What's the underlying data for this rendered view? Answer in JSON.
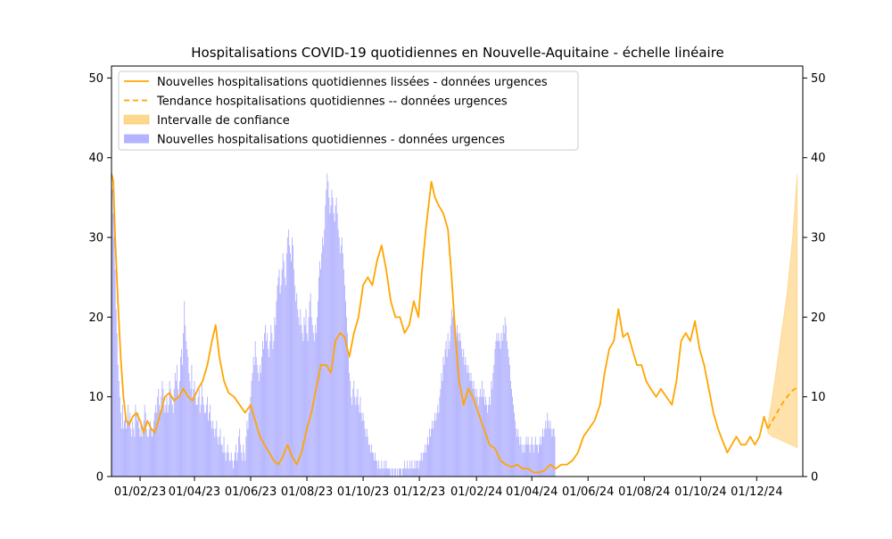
{
  "chart_data": {
    "type": "bar",
    "title": "Hospitalisations COVID-19 quotidiennes en Nouvelle-Aquitaine - échelle linéaire",
    "xlabel": "",
    "ylabel": "",
    "ylim": [
      0,
      51.5
    ],
    "yticks": [
      0,
      10,
      20,
      30,
      40,
      50
    ],
    "ytick_labels": [
      "0",
      "10",
      "20",
      "30",
      "40",
      "50"
    ],
    "xticks": [
      {
        "label": "01/02/23",
        "date": "2023-02-01"
      },
      {
        "label": "01/04/23",
        "date": "2023-04-01"
      },
      {
        "label": "01/06/23",
        "date": "2023-06-01"
      },
      {
        "label": "01/08/23",
        "date": "2023-08-01"
      },
      {
        "label": "01/10/23",
        "date": "2023-10-01"
      },
      {
        "label": "01/12/23",
        "date": "2023-12-01"
      },
      {
        "label": "01/02/24",
        "date": "2024-02-01"
      },
      {
        "label": "01/04/24",
        "date": "2024-04-01"
      },
      {
        "label": "01/06/24",
        "date": "2024-06-01"
      },
      {
        "label": "01/08/24",
        "date": "2024-08-01"
      },
      {
        "label": "01/10/24",
        "date": "2024-10-01"
      },
      {
        "label": "01/12/24",
        "date": "2024-12-01"
      }
    ],
    "xlim": [
      "2023-01-01",
      "2025-01-20"
    ],
    "grid": false,
    "right_axis": true,
    "legend_position": "upper-left",
    "colors": {
      "bars": "#b3b3ff",
      "smoothed": "#ffa500",
      "trend": "#ffa500",
      "ci_fill": "#ffd88f"
    },
    "series": [
      {
        "name": "Nouvelles hospitalisations quotidiennes lissées - données urgences",
        "style": "solid-line",
        "points": [
          [
            "2023-01-01",
            38
          ],
          [
            "2023-01-03",
            37
          ],
          [
            "2023-01-05",
            30
          ],
          [
            "2023-01-08",
            22
          ],
          [
            "2023-01-11",
            15
          ],
          [
            "2023-01-14",
            10
          ],
          [
            "2023-01-17",
            7
          ],
          [
            "2023-01-20",
            6.5
          ],
          [
            "2023-01-24",
            7.5
          ],
          [
            "2023-01-28",
            8
          ],
          [
            "2023-02-01",
            7
          ],
          [
            "2023-02-05",
            5.5
          ],
          [
            "2023-02-09",
            7
          ],
          [
            "2023-02-13",
            6
          ],
          [
            "2023-02-17",
            5.5
          ],
          [
            "2023-02-22",
            7.5
          ],
          [
            "2023-02-28",
            10
          ],
          [
            "2023-03-05",
            10.5
          ],
          [
            "2023-03-10",
            9.5
          ],
          [
            "2023-03-15",
            10
          ],
          [
            "2023-03-20",
            11
          ],
          [
            "2023-03-25",
            10
          ],
          [
            "2023-03-30",
            9.5
          ],
          [
            "2023-04-05",
            11
          ],
          [
            "2023-04-10",
            12
          ],
          [
            "2023-04-15",
            14
          ],
          [
            "2023-04-20",
            17
          ],
          [
            "2023-04-24",
            19
          ],
          [
            "2023-04-28",
            15
          ],
          [
            "2023-05-03",
            12
          ],
          [
            "2023-05-08",
            10.5
          ],
          [
            "2023-05-14",
            10
          ],
          [
            "2023-05-20",
            9
          ],
          [
            "2023-05-26",
            8
          ],
          [
            "2023-06-01",
            9
          ],
          [
            "2023-06-06",
            7
          ],
          [
            "2023-06-11",
            5
          ],
          [
            "2023-06-16",
            4
          ],
          [
            "2023-06-21",
            3
          ],
          [
            "2023-06-26",
            2
          ],
          [
            "2023-07-01",
            1.5
          ],
          [
            "2023-07-06",
            2.5
          ],
          [
            "2023-07-11",
            4
          ],
          [
            "2023-07-16",
            2.5
          ],
          [
            "2023-07-21",
            1.5
          ],
          [
            "2023-07-26",
            3
          ],
          [
            "2023-08-01",
            6
          ],
          [
            "2023-08-06",
            8
          ],
          [
            "2023-08-11",
            11
          ],
          [
            "2023-08-16",
            14
          ],
          [
            "2023-08-22",
            14
          ],
          [
            "2023-08-27",
            13
          ],
          [
            "2023-09-01",
            17
          ],
          [
            "2023-09-06",
            18
          ],
          [
            "2023-09-11",
            17.5
          ],
          [
            "2023-09-16",
            15
          ],
          [
            "2023-09-21",
            18
          ],
          [
            "2023-09-26",
            20
          ],
          [
            "2023-10-01",
            24
          ],
          [
            "2023-10-06",
            25
          ],
          [
            "2023-10-11",
            24
          ],
          [
            "2023-10-16",
            27
          ],
          [
            "2023-10-21",
            29
          ],
          [
            "2023-10-26",
            26
          ],
          [
            "2023-10-31",
            22
          ],
          [
            "2023-11-05",
            20
          ],
          [
            "2023-11-10",
            20
          ],
          [
            "2023-11-15",
            18
          ],
          [
            "2023-11-20",
            19
          ],
          [
            "2023-11-25",
            22
          ],
          [
            "2023-11-30",
            20
          ],
          [
            "2023-12-04",
            26
          ],
          [
            "2023-12-08",
            31
          ],
          [
            "2023-12-12",
            35
          ],
          [
            "2023-12-14",
            37
          ],
          [
            "2023-12-18",
            35
          ],
          [
            "2023-12-22",
            34
          ],
          [
            "2023-12-27",
            33
          ],
          [
            "2024-01-01",
            31
          ],
          [
            "2024-01-05",
            25
          ],
          [
            "2024-01-09",
            18
          ],
          [
            "2024-01-13",
            12
          ],
          [
            "2024-01-18",
            9
          ],
          [
            "2024-01-23",
            11
          ],
          [
            "2024-01-28",
            10
          ],
          [
            "2024-02-03",
            8
          ],
          [
            "2024-02-09",
            6
          ],
          [
            "2024-02-15",
            4
          ],
          [
            "2024-02-21",
            3.5
          ],
          [
            "2024-02-27",
            2
          ],
          [
            "2024-03-04",
            1.5
          ],
          [
            "2024-03-10",
            1.2
          ],
          [
            "2024-03-16",
            1.5
          ],
          [
            "2024-03-22",
            1
          ],
          [
            "2024-03-28",
            1
          ],
          [
            "2024-04-03",
            0.5
          ],
          [
            "2024-04-09",
            0.5
          ],
          [
            "2024-04-15",
            0.8
          ],
          [
            "2024-04-21",
            1.5
          ],
          [
            "2024-04-27",
            1
          ],
          [
            "2024-05-03",
            1.5
          ],
          [
            "2024-05-09",
            1.5
          ],
          [
            "2024-05-15",
            2
          ],
          [
            "2024-05-21",
            3
          ],
          [
            "2024-05-27",
            5
          ],
          [
            "2024-06-02",
            6
          ],
          [
            "2024-06-08",
            7
          ],
          [
            "2024-06-14",
            9
          ],
          [
            "2024-06-19",
            13
          ],
          [
            "2024-06-24",
            16
          ],
          [
            "2024-06-29",
            17
          ],
          [
            "2024-07-04",
            21
          ],
          [
            "2024-07-09",
            17.5
          ],
          [
            "2024-07-14",
            18
          ],
          [
            "2024-07-19",
            16
          ],
          [
            "2024-07-24",
            14
          ],
          [
            "2024-07-29",
            14
          ],
          [
            "2024-08-03",
            12
          ],
          [
            "2024-08-08",
            11
          ],
          [
            "2024-08-14",
            10
          ],
          [
            "2024-08-19",
            11
          ],
          [
            "2024-08-25",
            10
          ],
          [
            "2024-08-31",
            9
          ],
          [
            "2024-09-05",
            12
          ],
          [
            "2024-09-10",
            17
          ],
          [
            "2024-09-15",
            18
          ],
          [
            "2024-09-20",
            17
          ],
          [
            "2024-09-25",
            19.5
          ],
          [
            "2024-09-30",
            16
          ],
          [
            "2024-10-05",
            14
          ],
          [
            "2024-10-10",
            11
          ],
          [
            "2024-10-15",
            8
          ],
          [
            "2024-10-20",
            6
          ],
          [
            "2024-10-25",
            4.5
          ],
          [
            "2024-10-30",
            3
          ],
          [
            "2024-11-04",
            4
          ],
          [
            "2024-11-09",
            5
          ],
          [
            "2024-11-14",
            4
          ],
          [
            "2024-11-19",
            4
          ],
          [
            "2024-11-24",
            5
          ],
          [
            "2024-11-29",
            4
          ],
          [
            "2024-12-04",
            5
          ],
          [
            "2024-12-09",
            7.5
          ],
          [
            "2024-12-13",
            6
          ]
        ]
      },
      {
        "name": "Tendance hospitalisations quotidiennes -- données urgences",
        "style": "dashed-line",
        "points": [
          [
            "2024-12-13",
            6
          ],
          [
            "2024-12-18",
            7
          ],
          [
            "2024-12-23",
            8
          ],
          [
            "2024-12-28",
            9
          ],
          [
            "2025-01-03",
            10
          ],
          [
            "2025-01-09",
            10.8
          ],
          [
            "2025-01-14",
            11.2
          ]
        ]
      },
      {
        "name": "Intervalle de confiance",
        "style": "band",
        "upper": [
          [
            "2024-12-13",
            6.5
          ],
          [
            "2024-12-18",
            10
          ],
          [
            "2024-12-23",
            14
          ],
          [
            "2024-12-28",
            18
          ],
          [
            "2025-01-03",
            23
          ],
          [
            "2025-01-09",
            30
          ],
          [
            "2025-01-14",
            38
          ]
        ],
        "lower": [
          [
            "2024-12-13",
            5.5
          ],
          [
            "2024-12-18",
            5
          ],
          [
            "2024-12-23",
            4.8
          ],
          [
            "2024-12-28",
            4.5
          ],
          [
            "2025-01-03",
            4.2
          ],
          [
            "2025-01-09",
            3.9
          ],
          [
            "2025-01-14",
            3.6
          ]
        ]
      },
      {
        "name": "Nouvelles hospitalisations quotidiennes - données urgences",
        "style": "bars",
        "start_date": "2023-01-01",
        "values": [
          40,
          36,
          33,
          30,
          26,
          21,
          18,
          14,
          12,
          10,
          8,
          6,
          9,
          6,
          7,
          8,
          6,
          7,
          9,
          7,
          8,
          6,
          5,
          7,
          6,
          5,
          9,
          8,
          7,
          8,
          6,
          5,
          7,
          5,
          6,
          7,
          9,
          8,
          6,
          5,
          5,
          6,
          7,
          6,
          5,
          6,
          7,
          8,
          9,
          8,
          10,
          11,
          9,
          8,
          10,
          12,
          11,
          9,
          8,
          9,
          10,
          8,
          9,
          12,
          11,
          10,
          9,
          8,
          11,
          13,
          12,
          14,
          11,
          10,
          12,
          15,
          16,
          14,
          18,
          22,
          19,
          17,
          16,
          15,
          13,
          12,
          11,
          14,
          10,
          11,
          12,
          10,
          9,
          9,
          10,
          11,
          8,
          9,
          12,
          10,
          9,
          8,
          8,
          9,
          10,
          7,
          8,
          9,
          7,
          6,
          7,
          6,
          5,
          6,
          7,
          5,
          4,
          5,
          6,
          4,
          4,
          3,
          5,
          3,
          2,
          3,
          4,
          3,
          2,
          2,
          3,
          2,
          1,
          2,
          3,
          4,
          2,
          3,
          5,
          6,
          4,
          3,
          2,
          4,
          3,
          2,
          5,
          7,
          6,
          8,
          9,
          10,
          12,
          13,
          15,
          14,
          17,
          15,
          14,
          13,
          12,
          14,
          13,
          15,
          17,
          16,
          18,
          19,
          17,
          18,
          16,
          15,
          17,
          19,
          18,
          16,
          17,
          20,
          19,
          22,
          24,
          25,
          26,
          23,
          24,
          26,
          28,
          27,
          25,
          24,
          28,
          30,
          31,
          29,
          28,
          27,
          30,
          29,
          26,
          24,
          22,
          23,
          21,
          20,
          19,
          21,
          19,
          18,
          17,
          20,
          19,
          21,
          18,
          17,
          20,
          22,
          23,
          20,
          19,
          18,
          17,
          19,
          18,
          20,
          22,
          25,
          27,
          26,
          28,
          30,
          29,
          31,
          34,
          36,
          38,
          37,
          35,
          33,
          34,
          36,
          35,
          33,
          32,
          34,
          35,
          33,
          31,
          30,
          28,
          29,
          30,
          28,
          26,
          24,
          22,
          20,
          18,
          15,
          13,
          12,
          10,
          9,
          11,
          12,
          10,
          9,
          10,
          11,
          9,
          8,
          10,
          8,
          7,
          8,
          7,
          6,
          5,
          6,
          5,
          4,
          4,
          3,
          4,
          3,
          3,
          2,
          3,
          2,
          2,
          1,
          2,
          1,
          1,
          2,
          1,
          1,
          2,
          1,
          2,
          1,
          1,
          1,
          1,
          0,
          1,
          1,
          0,
          1,
          1,
          0,
          1,
          0,
          1,
          1,
          1,
          0,
          1,
          1,
          2,
          1,
          1,
          2,
          1,
          1,
          2,
          1,
          2,
          1,
          1,
          2,
          1,
          2,
          2,
          1,
          2,
          2,
          3,
          2,
          3,
          3,
          4,
          3,
          4,
          5,
          4,
          6,
          5,
          6,
          7,
          6,
          7,
          8,
          7,
          8,
          9,
          8,
          10,
          11,
          13,
          12,
          15,
          14,
          16,
          17,
          15,
          18,
          16,
          17,
          19,
          21,
          20,
          22,
          19,
          18,
          17,
          19,
          18,
          17,
          18,
          17,
          16,
          15,
          16,
          14,
          15,
          14,
          13,
          14,
          13,
          12,
          13,
          12,
          11,
          12,
          11,
          10,
          11,
          10,
          9,
          10,
          11,
          10,
          12,
          10,
          11,
          9,
          10,
          9,
          8,
          9,
          10,
          9,
          12,
          11,
          13,
          14,
          16,
          17,
          18,
          17,
          18,
          17,
          16,
          18,
          17,
          19,
          18,
          20,
          19,
          17,
          16,
          15,
          14,
          12,
          11,
          10,
          9,
          8,
          7,
          6,
          5,
          6,
          5,
          4,
          5,
          4,
          3,
          4,
          3,
          4,
          5,
          4,
          5,
          4,
          3,
          4,
          5,
          4,
          3,
          4,
          5,
          4,
          4,
          3,
          4,
          5,
          4,
          5,
          6,
          5,
          6,
          7,
          6,
          8,
          7,
          6,
          7,
          6,
          5,
          6,
          6,
          5
        ]
      }
    ]
  }
}
